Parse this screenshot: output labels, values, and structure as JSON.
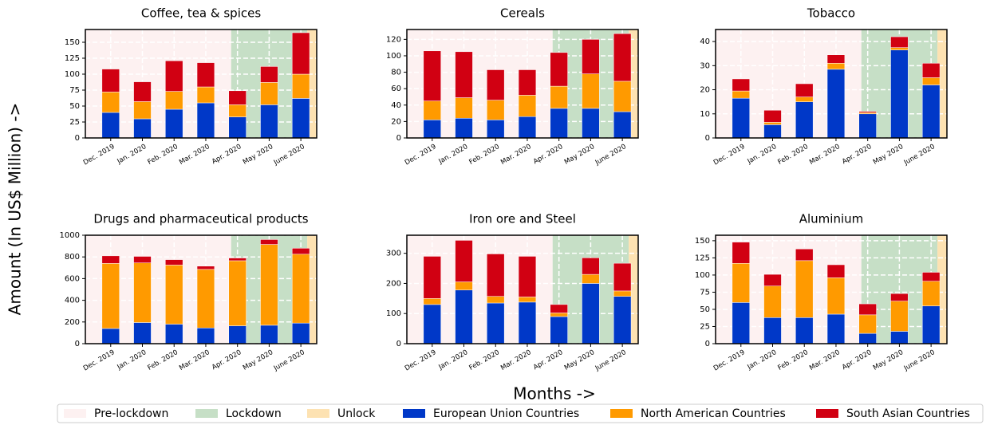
{
  "ylabel": "Amount (In US$ Million) ->",
  "xlabel": "Months ->",
  "regions": [
    {
      "name": "Pre-lockdown",
      "color": "#fdf1f1",
      "span": [
        -0.8,
        3.8
      ]
    },
    {
      "name": "Lockdown",
      "color": "#c6dfc6",
      "span": [
        3.8,
        6.2
      ]
    },
    {
      "name": "Unlock",
      "color": "#fde2b2",
      "span": [
        6.2,
        6.5
      ]
    }
  ],
  "series_legend": [
    {
      "name": "European Union Countries",
      "color": "#0038c8"
    },
    {
      "name": "North American Countries",
      "color": "#ff9a00"
    },
    {
      "name": "South Asian Countries",
      "color": "#d10012"
    }
  ],
  "chart_data": [
    {
      "type": "bar",
      "title": "Coffee, tea & spices",
      "categories": [
        "Dec. 2019",
        "Jan. 2020",
        "Feb. 2020",
        "Mar. 2020",
        "Apr. 2020",
        "May 2020",
        "June 2020"
      ],
      "series": [
        {
          "values": [
            40,
            30,
            45,
            55,
            33,
            52,
            62
          ]
        },
        {
          "values": [
            32,
            27,
            28,
            25,
            19,
            35,
            38
          ]
        },
        {
          "values": [
            36,
            31,
            48,
            38,
            22,
            25,
            65
          ]
        }
      ],
      "xlim": [
        -0.8,
        6.5
      ],
      "ylim": [
        0,
        170
      ],
      "yticks": [
        0,
        25,
        50,
        75,
        100,
        125,
        150
      ]
    },
    {
      "type": "bar",
      "title": "Cereals",
      "categories": [
        "Dec. 2019",
        "Jan. 2020",
        "Feb. 2020",
        "Mar. 2020",
        "Apr. 2020",
        "May 2020",
        "June 2020"
      ],
      "series": [
        {
          "values": [
            22,
            24,
            22,
            26,
            36,
            36,
            32
          ]
        },
        {
          "values": [
            23,
            25,
            24,
            26,
            27,
            42,
            37
          ]
        },
        {
          "values": [
            61,
            56,
            37,
            31,
            41,
            42,
            58
          ]
        }
      ],
      "xlim": [
        -0.8,
        6.5
      ],
      "ylim": [
        0,
        132
      ],
      "yticks": [
        0,
        20,
        40,
        60,
        80,
        100,
        120
      ]
    },
    {
      "type": "bar",
      "title": "Tobacco",
      "categories": [
        "Dec. 2019",
        "Jan. 2020",
        "Feb. 2020",
        "Mar. 2020",
        "Apr. 2020",
        "May 2020",
        "June 2020"
      ],
      "series": [
        {
          "values": [
            16.5,
            5.5,
            15,
            28.5,
            10,
            36.5,
            22
          ]
        },
        {
          "values": [
            3,
            1,
            2,
            2.5,
            0.5,
            1,
            3
          ]
        },
        {
          "values": [
            5,
            5,
            5.5,
            3.5,
            0.5,
            4.5,
            6
          ]
        }
      ],
      "xlim": [
        -0.8,
        6.5
      ],
      "ylim": [
        0,
        45
      ],
      "yticks": [
        0,
        10,
        20,
        30,
        40
      ]
    },
    {
      "type": "bar",
      "title": "Drugs and pharmaceutical products",
      "categories": [
        "Dec. 2019",
        "Jan. 2020",
        "Feb. 2020",
        "Mar. 2020",
        "Apr. 2020",
        "May 2020",
        "June 2020"
      ],
      "series": [
        {
          "values": [
            140,
            195,
            180,
            145,
            165,
            170,
            190
          ]
        },
        {
          "values": [
            600,
            550,
            545,
            540,
            600,
            745,
            635
          ]
        },
        {
          "values": [
            70,
            60,
            50,
            30,
            25,
            45,
            55
          ]
        }
      ],
      "xlim": [
        -0.8,
        6.5
      ],
      "ylim": [
        0,
        1000
      ],
      "yticks": [
        0,
        200,
        400,
        600,
        800,
        1000
      ]
    },
    {
      "type": "bar",
      "title": "Iron ore and Steel",
      "categories": [
        "Dec. 2019",
        "Jan. 2020",
        "Feb. 2020",
        "Mar. 2020",
        "Apr. 2020",
        "May 2020",
        "June 2020"
      ],
      "series": [
        {
          "values": [
            130,
            178,
            135,
            138,
            90,
            200,
            157
          ]
        },
        {
          "values": [
            20,
            27,
            22,
            17,
            12,
            30,
            18
          ]
        },
        {
          "values": [
            140,
            138,
            141,
            135,
            28,
            55,
            92
          ]
        }
      ],
      "xlim": [
        -0.8,
        6.5
      ],
      "ylim": [
        0,
        360
      ],
      "yticks": [
        0,
        100,
        200,
        300
      ]
    },
    {
      "type": "bar",
      "title": "Aluminium",
      "categories": [
        "Dec. 2019",
        "Jan. 2020",
        "Feb. 2020",
        "Mar. 2020",
        "Apr. 2020",
        "May 2020",
        "June 2020"
      ],
      "series": [
        {
          "values": [
            60,
            38,
            38,
            43,
            15,
            18,
            55
          ]
        },
        {
          "values": [
            57,
            46,
            83,
            53,
            27,
            44,
            36
          ]
        },
        {
          "values": [
            31,
            17,
            17,
            19,
            16,
            11,
            13
          ]
        }
      ],
      "xlim": [
        -0.8,
        6.5
      ],
      "ylim": [
        0,
        158
      ],
      "yticks": [
        0,
        25,
        50,
        75,
        100,
        125,
        150
      ]
    }
  ]
}
